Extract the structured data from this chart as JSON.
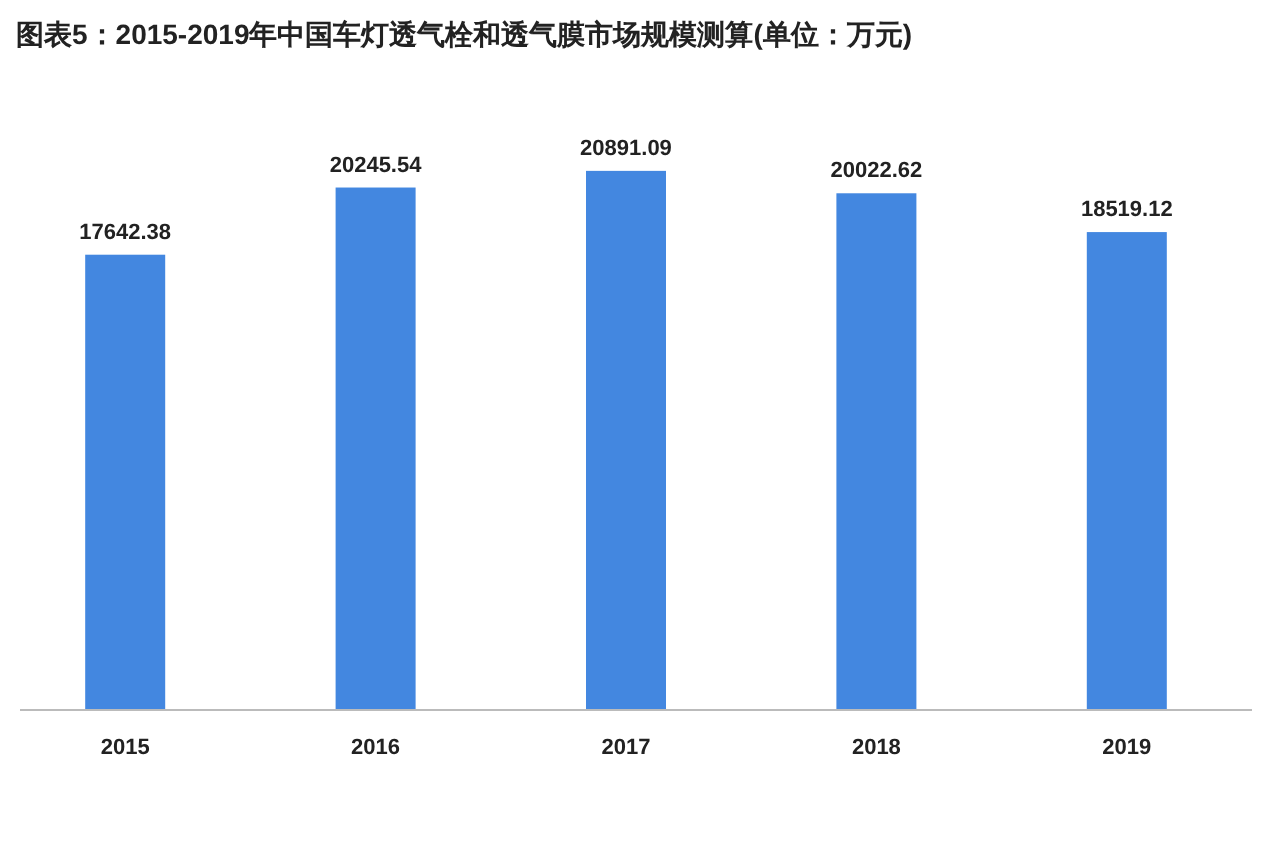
{
  "chart_data": {
    "type": "bar",
    "title": "图表5：2015-2019年中国车灯透气栓和透气膜市场规模测算(单位：万元)",
    "categories": [
      "2015",
      "2016",
      "2017",
      "2018",
      "2019"
    ],
    "values": [
      17642.38,
      20245.54,
      20891.09,
      20022.62,
      18519.12
    ],
    "color": "#4387e0",
    "data_labels": true
  }
}
